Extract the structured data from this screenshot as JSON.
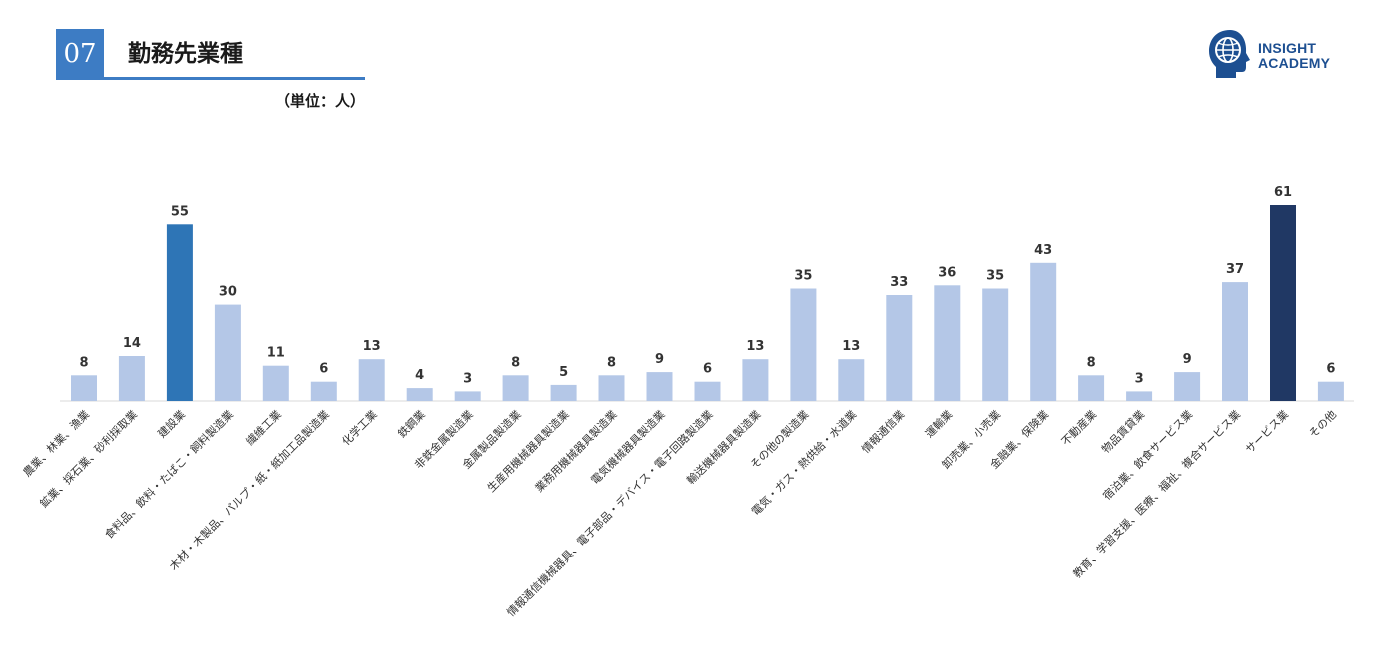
{
  "header": {
    "section_number": "07",
    "title": "勤務先業種",
    "unit": "（単位：人）"
  },
  "logo": {
    "line1": "INSIGHT",
    "line2": "ACADEMY",
    "icon": "head-globe-icon"
  },
  "colors": {
    "bar_default": "#b4c7e7",
    "bar_highlight_mid": "#2e75b6",
    "bar_highlight_max": "#203864",
    "accent": "#3d7cc4"
  },
  "chart_data": {
    "type": "bar",
    "categories": [
      "農業、林業、漁業",
      "鉱業、採石業、砂利採取業",
      "建設業",
      "食料品、飲料・たばこ・飼料製造業",
      "繊維工業",
      "木材・木製品、パルプ・紙・紙加工品製造業",
      "化学工業",
      "鉄鋼業",
      "非鉄金属製造業",
      "金属製品製造業",
      "生産用機械器具製造業",
      "業務用機械器具製造業",
      "電気機械器具製造業",
      "情報通信機械器具、電子部品・デバイス・電子回路製造業",
      "輸送機械器具製造業",
      "その他の製造業",
      "電気・ガス・熱供給・水道業",
      "情報通信業",
      "運輸業",
      "卸売業、小売業",
      "金融業、保険業",
      "不動産業",
      "物品賃貸業",
      "宿泊業、飲食サービス業",
      "教育、学習支援、医療、福祉、複合サービス業",
      "サービス業",
      "その他"
    ],
    "values": [
      8,
      14,
      55,
      30,
      11,
      6,
      13,
      4,
      3,
      8,
      5,
      8,
      9,
      6,
      13,
      35,
      13,
      33,
      36,
      35,
      43,
      8,
      3,
      9,
      37,
      61,
      6
    ],
    "highlight": {
      "建設業": "#2e75b6",
      "サービス業": "#203864"
    },
    "ylim": [
      0,
      61
    ],
    "grid": false,
    "legend": "none",
    "data_labels": true
  }
}
